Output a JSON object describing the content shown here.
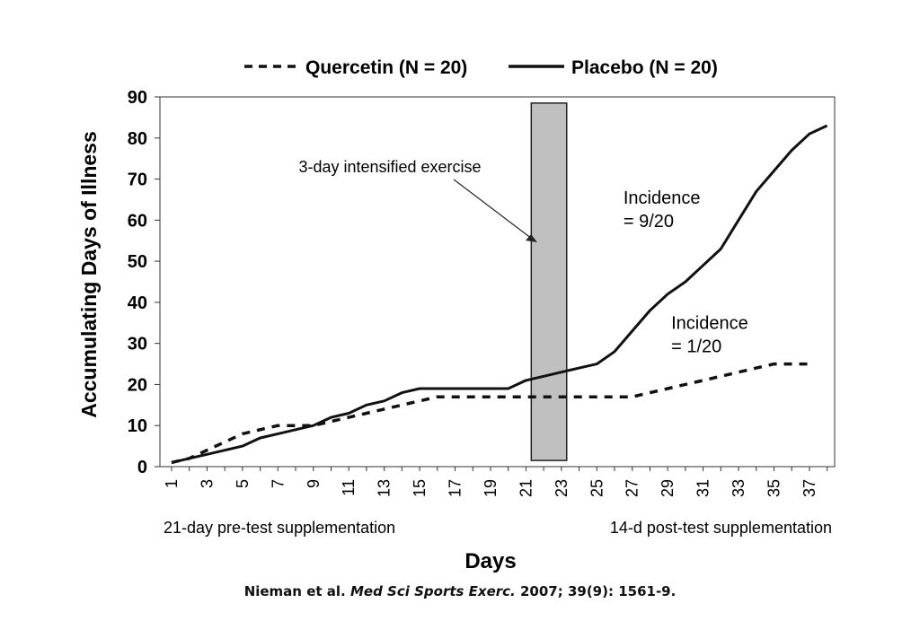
{
  "chart_data": {
    "type": "line",
    "xlabel": "Days",
    "ylabel": "Accumulating Days of Illness",
    "ylim": [
      0,
      90
    ],
    "yticks": [
      0,
      10,
      20,
      30,
      40,
      50,
      60,
      70,
      80,
      90
    ],
    "xlim": [
      1,
      38
    ],
    "xticks": [
      1,
      3,
      5,
      7,
      9,
      11,
      13,
      15,
      17,
      19,
      21,
      23,
      25,
      27,
      29,
      31,
      33,
      35,
      37
    ],
    "grid": false,
    "legend_position": "top",
    "series": [
      {
        "name": "Quercetin (N = 20)",
        "style": "dashed",
        "color": "#111111",
        "x": [
          1,
          2,
          3,
          4,
          5,
          6,
          7,
          8,
          9,
          10,
          11,
          12,
          13,
          14,
          15,
          16,
          17,
          18,
          19,
          20,
          21,
          22,
          23,
          24,
          25,
          26,
          27,
          28,
          29,
          30,
          31,
          32,
          33,
          34,
          35,
          36,
          37
        ],
        "values": [
          1,
          2,
          4,
          6,
          8,
          9,
          10,
          10,
          10,
          11,
          12,
          13,
          14,
          15,
          16,
          17,
          17,
          17,
          17,
          17,
          17,
          17,
          17,
          17,
          17,
          17,
          17,
          18,
          19,
          20,
          21,
          22,
          23,
          24,
          25,
          25,
          25
        ]
      },
      {
        "name": "Placebo (N = 20)",
        "style": "solid",
        "color": "#111111",
        "x": [
          1,
          2,
          3,
          4,
          5,
          6,
          7,
          8,
          9,
          10,
          11,
          12,
          13,
          14,
          15,
          16,
          17,
          18,
          19,
          20,
          21,
          22,
          23,
          24,
          25,
          26,
          27,
          28,
          29,
          30,
          31,
          32,
          33,
          34,
          35,
          36,
          37,
          38
        ],
        "values": [
          1,
          2,
          3,
          4,
          5,
          7,
          8,
          9,
          10,
          12,
          13,
          15,
          16,
          18,
          19,
          19,
          19,
          19,
          19,
          19,
          21,
          22,
          23,
          24,
          25,
          28,
          33,
          38,
          42,
          45,
          49,
          53,
          60,
          67,
          72,
          77,
          81,
          83
        ]
      }
    ],
    "highlight_region": {
      "x_range": [
        21.3,
        23.3
      ],
      "y_range": [
        1.5,
        88.5
      ],
      "fill": "#c0c0c0",
      "label": "3-day intensified exercise"
    },
    "annotations": [
      {
        "id": "placebo",
        "lines": [
          "Incidence",
          "= 9/20"
        ],
        "x": 26.5,
        "y": 64
      },
      {
        "id": "quercetin",
        "lines": [
          "Incidence",
          "= 1/20"
        ],
        "x": 29.2,
        "y": 33.5
      }
    ],
    "x_phase_labels": {
      "left": "21-day pre-test supplementation",
      "right": "14-d post-test supplementation"
    }
  },
  "citation": {
    "authors": "Nieman et al.",
    "journal": "Med Sci Sports Exerc.",
    "details": "2007; 39(9): 1561-9."
  }
}
